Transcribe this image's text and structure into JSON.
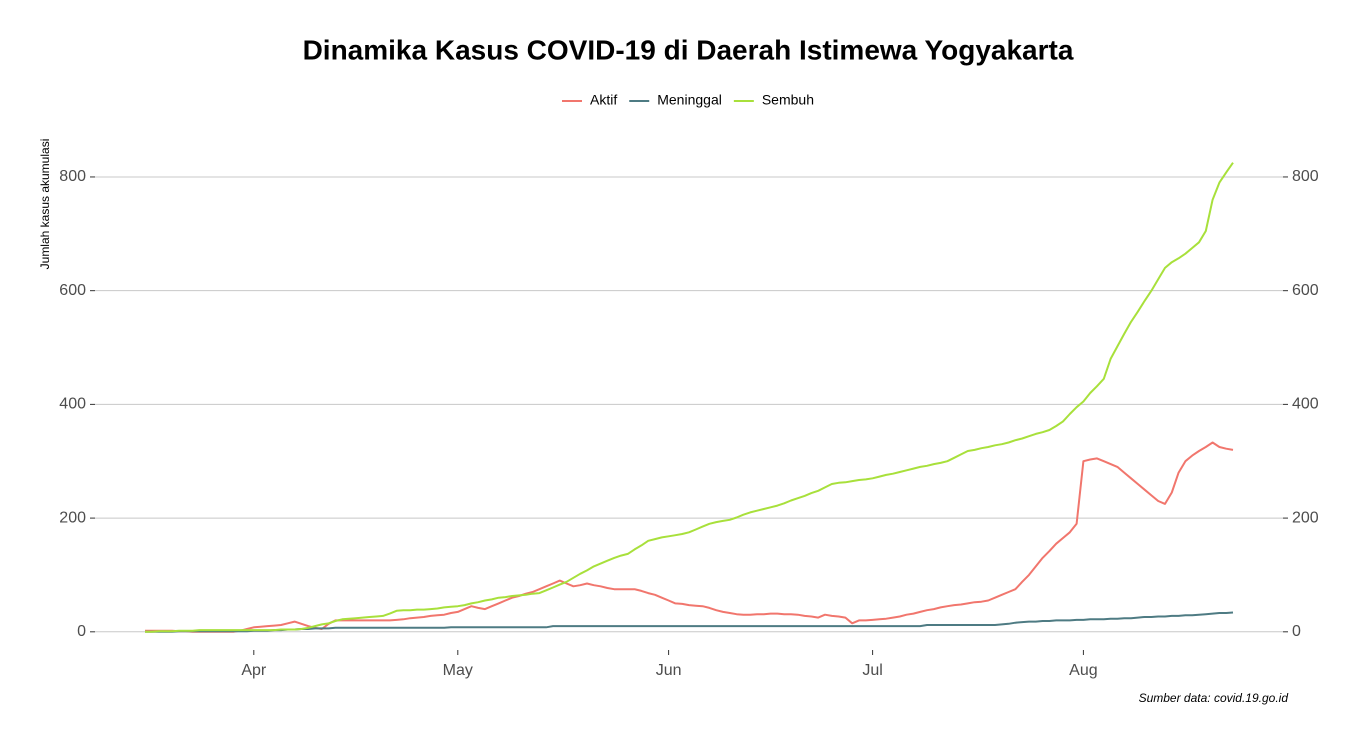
{
  "chart_data": {
    "type": "line",
    "title": "Dinamika Kasus COVID-19 di Daerah Istimewa Yogyakarta",
    "y_label": "Jumlah kasus akumulasi",
    "caption": "Sumber data: covid.19.go.id",
    "legend": "top",
    "grid": true,
    "ylim": [
      -32,
      865
    ],
    "yticks": [
      0,
      200,
      400,
      600,
      800
    ],
    "y2lim": [
      -32,
      865
    ],
    "y2ticks": [
      0,
      200,
      400,
      600,
      800
    ],
    "categories": [
      null,
      null,
      null,
      null,
      null,
      null,
      null,
      null,
      null,
      null,
      null,
      null,
      null,
      null,
      null,
      null,
      "Apr",
      null,
      null,
      null,
      null,
      null,
      null,
      null,
      null,
      null,
      null,
      null,
      null,
      null,
      null,
      null,
      null,
      null,
      null,
      null,
      null,
      null,
      null,
      null,
      null,
      null,
      null,
      null,
      null,
      null,
      "May",
      null,
      null,
      null,
      null,
      null,
      null,
      null,
      null,
      null,
      null,
      null,
      null,
      null,
      null,
      null,
      null,
      null,
      null,
      null,
      null,
      null,
      null,
      null,
      null,
      null,
      null,
      null,
      null,
      null,
      null,
      "Jun",
      null,
      null,
      null,
      null,
      null,
      null,
      null,
      null,
      null,
      null,
      null,
      null,
      null,
      null,
      null,
      null,
      null,
      null,
      null,
      null,
      null,
      null,
      null,
      null,
      null,
      null,
      null,
      null,
      null,
      "Jul",
      null,
      null,
      null,
      null,
      null,
      null,
      null,
      null,
      null,
      null,
      null,
      null,
      null,
      null,
      null,
      null,
      null,
      null,
      null,
      null,
      null,
      null,
      null,
      null,
      null,
      null,
      null,
      null,
      null,
      null,
      "Aug",
      null,
      null,
      null,
      null,
      null,
      null,
      null,
      null,
      null,
      null,
      null,
      null,
      null,
      null,
      null,
      null,
      null,
      null,
      null,
      null,
      null,
      null
    ],
    "series": [
      {
        "name": "Aktif",
        "color": "#f1766d",
        "values": [
          2,
          2,
          2,
          2,
          2,
          1,
          1,
          0,
          0,
          0,
          0,
          0,
          0,
          0,
          2,
          5,
          8,
          9,
          10,
          11,
          12,
          15,
          18,
          14,
          10,
          7,
          5,
          14,
          20,
          20,
          20,
          20,
          20,
          20,
          20,
          20,
          20,
          21,
          22,
          24,
          25,
          26,
          28,
          29,
          30,
          33,
          35,
          40,
          45,
          42,
          40,
          45,
          50,
          55,
          60,
          63,
          67,
          70,
          75,
          80,
          85,
          90,
          85,
          80,
          82,
          85,
          82,
          80,
          77,
          75,
          75,
          75,
          75,
          72,
          68,
          65,
          60,
          55,
          50,
          49,
          47,
          46,
          45,
          42,
          38,
          35,
          33,
          31,
          30,
          30,
          31,
          31,
          32,
          32,
          31,
          31,
          30,
          28,
          27,
          25,
          30,
          28,
          27,
          25,
          15,
          20,
          20,
          21,
          22,
          23,
          25,
          27,
          30,
          32,
          35,
          38,
          40,
          43,
          45,
          47,
          48,
          50,
          52,
          53,
          55,
          60,
          65,
          70,
          75,
          88,
          100,
          115,
          130,
          142,
          155,
          165,
          175,
          190,
          300,
          303,
          305,
          300,
          295,
          290,
          280,
          270,
          260,
          250,
          240,
          230,
          225,
          245,
          280,
          300,
          310,
          318,
          325,
          333,
          325,
          322,
          320
        ]
      },
      {
        "name": "Meninggal",
        "color": "#4e7b83",
        "values": [
          0,
          0,
          0,
          0,
          0,
          1,
          1,
          1,
          1,
          1,
          1,
          1,
          1,
          1,
          1,
          1,
          2,
          2,
          2,
          3,
          3,
          4,
          4,
          5,
          5,
          6,
          6,
          6,
          7,
          7,
          7,
          7,
          7,
          7,
          7,
          7,
          7,
          7,
          7,
          7,
          7,
          7,
          7,
          7,
          7,
          8,
          8,
          8,
          8,
          8,
          8,
          8,
          8,
          8,
          8,
          8,
          8,
          8,
          8,
          8,
          10,
          10,
          10,
          10,
          10,
          10,
          10,
          10,
          10,
          10,
          10,
          10,
          10,
          10,
          10,
          10,
          10,
          10,
          10,
          10,
          10,
          10,
          10,
          10,
          10,
          10,
          10,
          10,
          10,
          10,
          10,
          10,
          10,
          10,
          10,
          10,
          10,
          10,
          10,
          10,
          10,
          10,
          10,
          10,
          10,
          10,
          10,
          10,
          10,
          10,
          10,
          10,
          10,
          10,
          10,
          12,
          12,
          12,
          12,
          12,
          12,
          12,
          12,
          12,
          12,
          12,
          13,
          14,
          16,
          17,
          18,
          18,
          19,
          19,
          20,
          20,
          20,
          21,
          21,
          22,
          22,
          22,
          23,
          23,
          24,
          24,
          25,
          26,
          26,
          27,
          27,
          28,
          28,
          29,
          29,
          30,
          31,
          32,
          33,
          33,
          34
        ]
      },
      {
        "name": "Sembuh",
        "color": "#a8e03b",
        "values": [
          0,
          0,
          1,
          1,
          1,
          2,
          2,
          2,
          3,
          3,
          3,
          3,
          3,
          3,
          3,
          3,
          3,
          3,
          3,
          3,
          4,
          4,
          4,
          5,
          7,
          10,
          13,
          15,
          19,
          22,
          23,
          24,
          25,
          26,
          27,
          28,
          32,
          37,
          38,
          38,
          39,
          39,
          40,
          41,
          43,
          44,
          45,
          47,
          50,
          52,
          55,
          57,
          60,
          61,
          63,
          64,
          65,
          67,
          68,
          73,
          78,
          83,
          88,
          95,
          102,
          108,
          115,
          120,
          125,
          130,
          134,
          137,
          145,
          152,
          160,
          163,
          166,
          168,
          170,
          172,
          175,
          180,
          185,
          190,
          193,
          195,
          197,
          201,
          206,
          210,
          213,
          216,
          219,
          222,
          226,
          231,
          235,
          239,
          244,
          248,
          254,
          260,
          262,
          263,
          265,
          267,
          268,
          270,
          273,
          276,
          278,
          281,
          284,
          287,
          290,
          292,
          295,
          297,
          300,
          306,
          312,
          318,
          320,
          323,
          325,
          328,
          330,
          333,
          337,
          340,
          344,
          348,
          351,
          355,
          362,
          370,
          383,
          395,
          405,
          420,
          432,
          445,
          480,
          502,
          524,
          545,
          563,
          582,
          600,
          620,
          640,
          650,
          657,
          665,
          675,
          685,
          705,
          760,
          790,
          808,
          825
        ]
      }
    ]
  }
}
